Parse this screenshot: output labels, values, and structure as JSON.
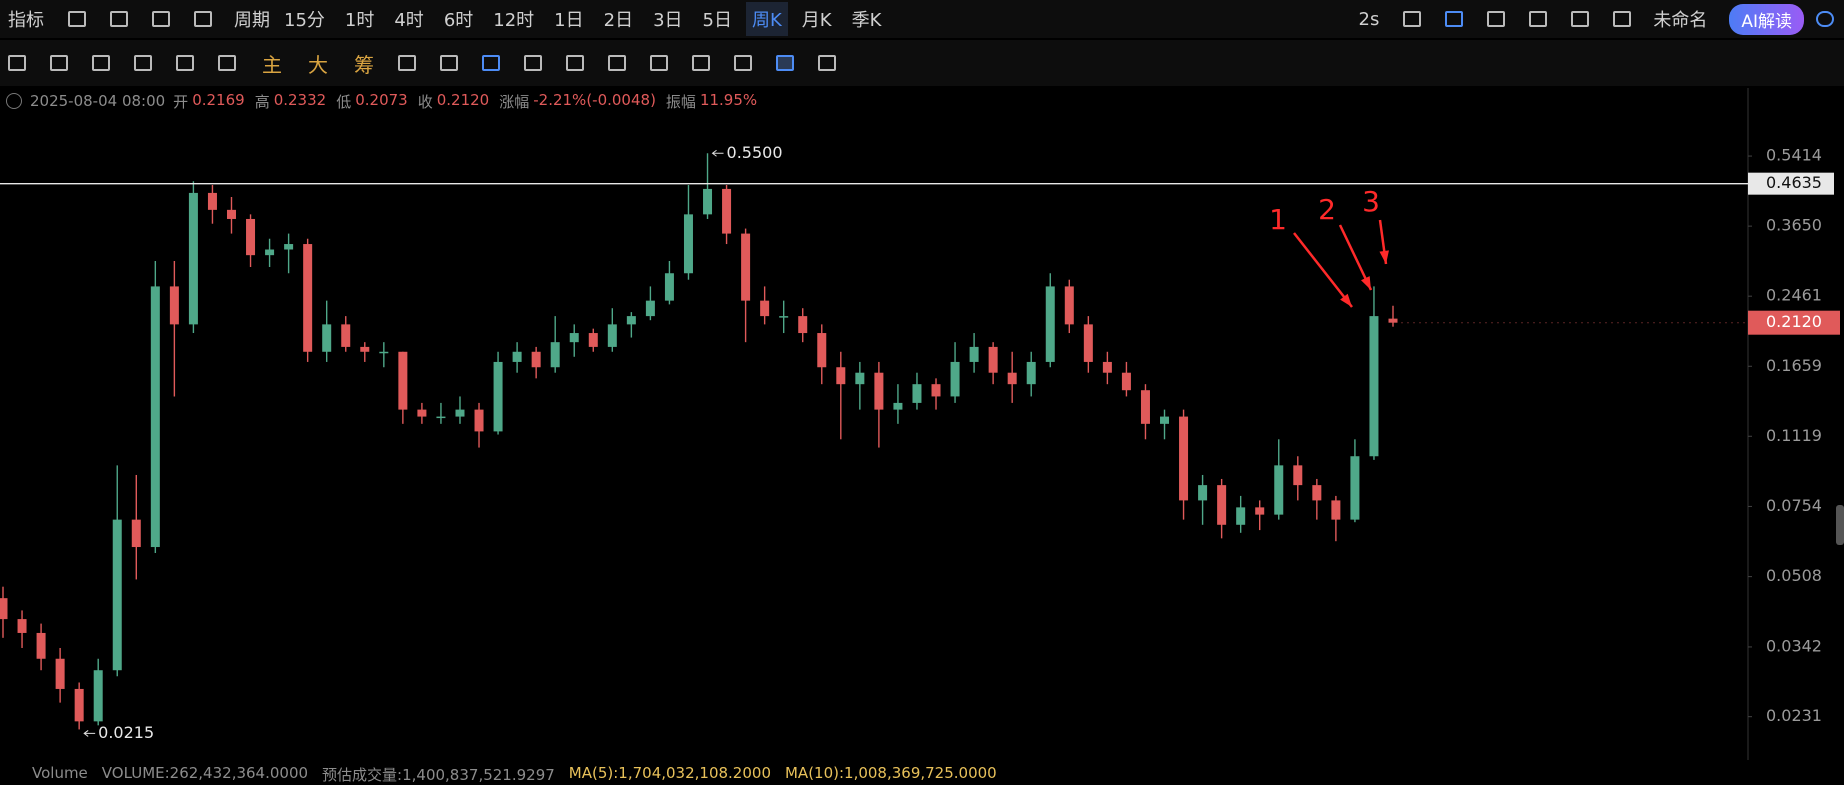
{
  "top_toolbar": {
    "indicator": "指标",
    "period": "周期",
    "intervals": [
      "15分",
      "1时",
      "4时",
      "6时",
      "12时",
      "1日",
      "2日",
      "3日",
      "5日",
      "周K",
      "月K",
      "季K"
    ],
    "refresh": "2s",
    "layout_name": "未命名",
    "ai_button": "AI解读"
  },
  "drawing_toolbar": {
    "overlays": [
      "主",
      "大",
      "筹"
    ]
  },
  "info_bar": {
    "datetime": "2025-08-04 08:00",
    "fields": [
      {
        "label": "开",
        "value": "0.2169"
      },
      {
        "label": "高",
        "value": "0.2332"
      },
      {
        "label": "低",
        "value": "0.2073"
      },
      {
        "label": "收",
        "value": "0.2120"
      },
      {
        "label": "涨幅",
        "value": "-2.21%(-0.0048)"
      },
      {
        "label": "振幅",
        "value": "11.95%"
      }
    ]
  },
  "chart_data": {
    "type": "candlestick",
    "log_scale": true,
    "ylim": [
      0.0177,
      0.794
    ],
    "yticks": [
      0.5414,
      {
        "value": 0.365,
        "label": "0.3650"
      },
      0.2461,
      0.1659,
      0.1119,
      0.0754,
      0.0508,
      0.0342,
      0.0231
    ],
    "up_color": "#4fa889",
    "down_color": "#e05a5a",
    "candles": [
      [
        0.045,
        0.048,
        0.036,
        0.04
      ],
      [
        0.04,
        0.042,
        0.034,
        0.037
      ],
      [
        0.037,
        0.039,
        0.03,
        0.032
      ],
      [
        0.032,
        0.034,
        0.025,
        0.027
      ],
      [
        0.027,
        0.028,
        0.0215,
        0.0225
      ],
      [
        0.0225,
        0.032,
        0.022,
        0.03
      ],
      [
        0.03,
        0.095,
        0.029,
        0.07
      ],
      [
        0.07,
        0.09,
        0.05,
        0.06
      ],
      [
        0.06,
        0.3,
        0.058,
        0.26
      ],
      [
        0.26,
        0.3,
        0.14,
        0.21
      ],
      [
        0.21,
        0.47,
        0.2,
        0.44
      ],
      [
        0.44,
        0.46,
        0.37,
        0.4
      ],
      [
        0.4,
        0.43,
        0.35,
        0.38
      ],
      [
        0.38,
        0.39,
        0.29,
        0.31
      ],
      [
        0.31,
        0.34,
        0.29,
        0.32
      ],
      [
        0.32,
        0.35,
        0.28,
        0.33
      ],
      [
        0.33,
        0.34,
        0.17,
        0.18
      ],
      [
        0.18,
        0.24,
        0.17,
        0.21
      ],
      [
        0.21,
        0.22,
        0.18,
        0.185
      ],
      [
        0.185,
        0.19,
        0.17,
        0.18
      ],
      [
        0.18,
        0.19,
        0.165,
        0.18
      ],
      [
        0.18,
        0.18,
        0.12,
        0.13
      ],
      [
        0.13,
        0.135,
        0.12,
        0.125
      ],
      [
        0.125,
        0.135,
        0.12,
        0.125
      ],
      [
        0.125,
        0.14,
        0.12,
        0.13
      ],
      [
        0.13,
        0.135,
        0.105,
        0.115
      ],
      [
        0.115,
        0.18,
        0.113,
        0.17
      ],
      [
        0.17,
        0.19,
        0.16,
        0.18
      ],
      [
        0.18,
        0.185,
        0.155,
        0.165
      ],
      [
        0.165,
        0.22,
        0.16,
        0.19
      ],
      [
        0.19,
        0.21,
        0.175,
        0.2
      ],
      [
        0.2,
        0.205,
        0.18,
        0.185
      ],
      [
        0.185,
        0.23,
        0.18,
        0.21
      ],
      [
        0.21,
        0.225,
        0.195,
        0.22
      ],
      [
        0.22,
        0.26,
        0.215,
        0.24
      ],
      [
        0.24,
        0.3,
        0.235,
        0.28
      ],
      [
        0.28,
        0.46,
        0.27,
        0.39
      ],
      [
        0.39,
        0.55,
        0.38,
        0.45
      ],
      [
        0.45,
        0.46,
        0.33,
        0.35
      ],
      [
        0.35,
        0.36,
        0.19,
        0.24
      ],
      [
        0.24,
        0.26,
        0.21,
        0.22
      ],
      [
        0.22,
        0.24,
        0.2,
        0.22
      ],
      [
        0.22,
        0.23,
        0.19,
        0.2
      ],
      [
        0.2,
        0.21,
        0.15,
        0.165
      ],
      [
        0.165,
        0.18,
        0.11,
        0.15
      ],
      [
        0.15,
        0.17,
        0.13,
        0.16
      ],
      [
        0.16,
        0.17,
        0.105,
        0.13
      ],
      [
        0.13,
        0.15,
        0.12,
        0.135
      ],
      [
        0.135,
        0.16,
        0.13,
        0.15
      ],
      [
        0.15,
        0.155,
        0.13,
        0.14
      ],
      [
        0.14,
        0.19,
        0.135,
        0.17
      ],
      [
        0.17,
        0.2,
        0.16,
        0.185
      ],
      [
        0.185,
        0.19,
        0.15,
        0.16
      ],
      [
        0.16,
        0.18,
        0.135,
        0.15
      ],
      [
        0.15,
        0.18,
        0.14,
        0.17
      ],
      [
        0.17,
        0.28,
        0.165,
        0.26
      ],
      [
        0.26,
        0.27,
        0.2,
        0.21
      ],
      [
        0.21,
        0.22,
        0.16,
        0.17
      ],
      [
        0.17,
        0.18,
        0.15,
        0.16
      ],
      [
        0.16,
        0.17,
        0.14,
        0.145
      ],
      [
        0.145,
        0.15,
        0.11,
        0.12
      ],
      [
        0.12,
        0.13,
        0.11,
        0.125
      ],
      [
        0.125,
        0.13,
        0.07,
        0.078
      ],
      [
        0.078,
        0.09,
        0.068,
        0.085
      ],
      [
        0.085,
        0.088,
        0.063,
        0.068
      ],
      [
        0.068,
        0.08,
        0.065,
        0.075
      ],
      [
        0.075,
        0.078,
        0.066,
        0.072
      ],
      [
        0.072,
        0.11,
        0.07,
        0.095
      ],
      [
        0.095,
        0.1,
        0.078,
        0.085
      ],
      [
        0.085,
        0.088,
        0.07,
        0.078
      ],
      [
        0.078,
        0.08,
        0.062,
        0.07
      ],
      [
        0.07,
        0.11,
        0.069,
        0.1
      ],
      [
        0.1,
        0.26,
        0.098,
        0.22
      ],
      [
        0.2169,
        0.2332,
        0.2073,
        0.212
      ]
    ],
    "hline": 0.4635,
    "last_price": {
      "value": 0.212,
      "label": "0.2120"
    },
    "max_label": {
      "value": 0.55,
      "label": "0.5500"
    },
    "min_label": 0.0215,
    "annotations": [
      "1",
      "2",
      "3"
    ]
  },
  "volume_bar": {
    "name": "Volume",
    "fields": [
      "VOLUME:262,432,364.0000",
      "预估成交量:1,400,837,521.9297",
      "MA(5):1,704,032,108.2000",
      "MA(10):1,008,369,725.0000"
    ]
  }
}
